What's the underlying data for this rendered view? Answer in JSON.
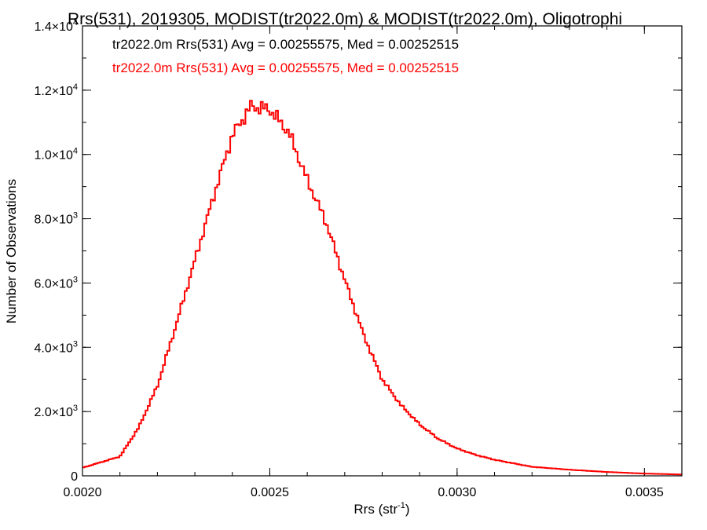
{
  "chart_data": {
    "type": "histogram",
    "title": "Rrs(531), 2019305, MODIST(tr2022.0m) & MODIST(tr2022.0m), Oligotrophi",
    "xlabel": "Rrs (str",
    "xlabel_sup": "-1",
    "xlabel_suffix": ")",
    "ylabel": "Number of Observations",
    "xlim": [
      0.002,
      0.0036
    ],
    "ylim": [
      0,
      14000
    ],
    "x_ticks": [
      {
        "value": 0.002,
        "label": "0.0020"
      },
      {
        "value": 0.0025,
        "label": "0.0025"
      },
      {
        "value": 0.003,
        "label": "0.0030"
      },
      {
        "value": 0.0035,
        "label": "0.0035"
      }
    ],
    "y_ticks": [
      {
        "value": 0,
        "mant": "0",
        "exp": ""
      },
      {
        "value": 2000,
        "mant": "2.0×10",
        "exp": "3"
      },
      {
        "value": 4000,
        "mant": "4.0×10",
        "exp": "3"
      },
      {
        "value": 6000,
        "mant": "6.0×10",
        "exp": "3"
      },
      {
        "value": 8000,
        "mant": "8.0×10",
        "exp": "3"
      },
      {
        "value": 10000,
        "mant": "1.0×10",
        "exp": "4"
      },
      {
        "value": 12000,
        "mant": "1.2×10",
        "exp": "4"
      },
      {
        "value": 14000,
        "mant": "1.4×10",
        "exp": "4"
      }
    ],
    "annotations": [
      {
        "text": "tr2022.0m Rrs(531) Avg = 0.00255575, Med = 0.00252515",
        "color": "#000000"
      },
      {
        "text": "tr2022.0m Rrs(531) Avg = 0.00255575, Med = 0.00252515",
        "color": "#ff0000"
      }
    ],
    "series": [
      {
        "color": "#ff0000",
        "x": [
          0.002,
          0.0021,
          0.00215,
          0.0022,
          0.00225,
          0.0023,
          0.00235,
          0.0024,
          0.00245,
          0.0025,
          0.00255,
          0.0026,
          0.00265,
          0.0027,
          0.00275,
          0.0028,
          0.00285,
          0.0029,
          0.00295,
          0.003,
          0.00305,
          0.0031,
          0.0032,
          0.0033,
          0.0034,
          0.0035,
          0.0036
        ],
        "values": [
          250,
          600,
          1500,
          2800,
          4700,
          6700,
          8700,
          10600,
          11500,
          11400,
          10700,
          9200,
          7900,
          6100,
          4400,
          3000,
          2200,
          1600,
          1150,
          850,
          650,
          500,
          280,
          190,
          120,
          70,
          40
        ]
      }
    ]
  }
}
